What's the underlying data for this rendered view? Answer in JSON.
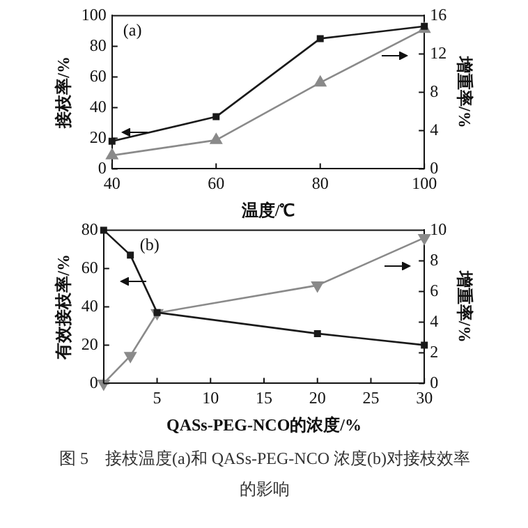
{
  "chart_data": [
    {
      "type": "line",
      "xlabel": "温度/℃",
      "ylabel": "接枝率/%",
      "y2label": "增重率/%",
      "x": [
        40,
        60,
        80,
        100
      ],
      "xlim": [
        40,
        100
      ],
      "xticks": [
        40,
        60,
        80,
        100
      ],
      "ylim": [
        0,
        100
      ],
      "yticks": [
        0,
        20,
        40,
        60,
        80,
        100
      ],
      "y2lim": [
        0,
        16
      ],
      "y2ticks": [
        0,
        4,
        8,
        12,
        16
      ],
      "grid": false,
      "legend": false,
      "annotations": [
        "(a)"
      ],
      "series": [
        {
          "color": "#1a1a1a",
          "values": [
            18,
            34,
            85,
            93
          ],
          "marker": "square"
        },
        {
          "color": "#8a8a8a",
          "values": [
            1.4,
            3,
            9,
            14.6
          ],
          "marker": "triangle",
          "axis": "y2"
        }
      ]
    },
    {
      "type": "line",
      "xlabel": "QASs-PEG-NCO的浓度/%",
      "ylabel": "有效接枝率/%",
      "y2label": "增重率/%",
      "x": [
        0,
        2.5,
        5,
        20,
        30
      ],
      "xlim": [
        0,
        30
      ],
      "xticks": [
        {
          "value": 0,
          "label": null
        },
        5,
        10,
        15,
        20,
        25,
        30
      ],
      "ylim": [
        0,
        80
      ],
      "yticks": [
        0,
        20,
        40,
        60,
        80
      ],
      "y2lim": [
        0,
        10
      ],
      "y2ticks": [
        0,
        2,
        4,
        6,
        8,
        10
      ],
      "grid": false,
      "legend": false,
      "annotations": [
        "(b)",
        "图 5　接枝温度(a)和 QASs-PEG-NCO 浓度(b)对接枝效率的影响"
      ],
      "series": [
        {
          "color": "#1a1a1a",
          "values": [
            80,
            67,
            37,
            26,
            20
          ],
          "marker": "square"
        },
        {
          "color": "#8a8a8a",
          "values": [
            0,
            1.8,
            4.6,
            6.4,
            9.5
          ],
          "marker": "triangle",
          "axis": "y2"
        }
      ]
    }
  ]
}
